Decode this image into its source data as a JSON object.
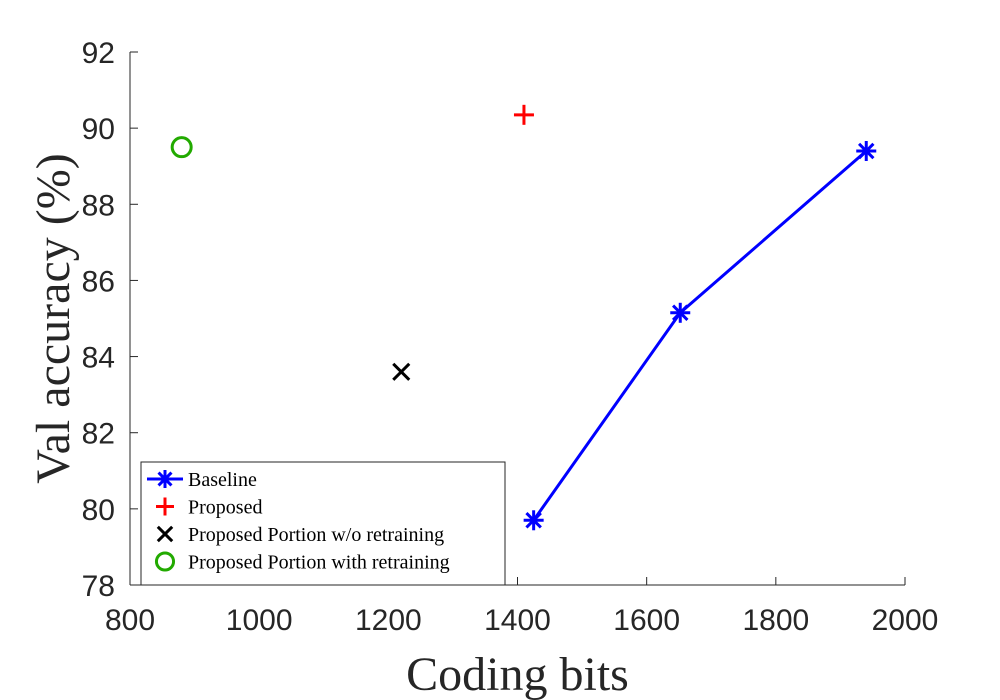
{
  "chart_data": {
    "type": "scatter",
    "xlabel": "Coding bits",
    "ylabel": "Val accuracy (%)",
    "xlim": [
      800,
      2000
    ],
    "ylim": [
      78,
      92
    ],
    "xticks": [
      800,
      1000,
      1200,
      1400,
      1600,
      1800,
      2000
    ],
    "yticks": [
      78,
      80,
      82,
      84,
      86,
      88,
      90,
      92
    ],
    "grid": false,
    "legend_position": "bottom-left",
    "series": [
      {
        "name": "Baseline",
        "marker": "asterisk",
        "line": true,
        "color": "#0000ff",
        "points": [
          {
            "x": 1425,
            "y": 79.7
          },
          {
            "x": 1652,
            "y": 85.15
          },
          {
            "x": 1940,
            "y": 89.4
          }
        ]
      },
      {
        "name": "Proposed",
        "marker": "plus",
        "line": false,
        "color": "#ff0000",
        "points": [
          {
            "x": 1410,
            "y": 90.35
          }
        ]
      },
      {
        "name": "Proposed Portion w/o retraining",
        "marker": "cross",
        "line": false,
        "color": "#000000",
        "points": [
          {
            "x": 1220,
            "y": 83.6
          }
        ]
      },
      {
        "name": "Proposed Portion with retraining",
        "marker": "circle",
        "line": false,
        "color": "#22aa00",
        "points": [
          {
            "x": 880,
            "y": 89.5
          }
        ]
      }
    ]
  }
}
